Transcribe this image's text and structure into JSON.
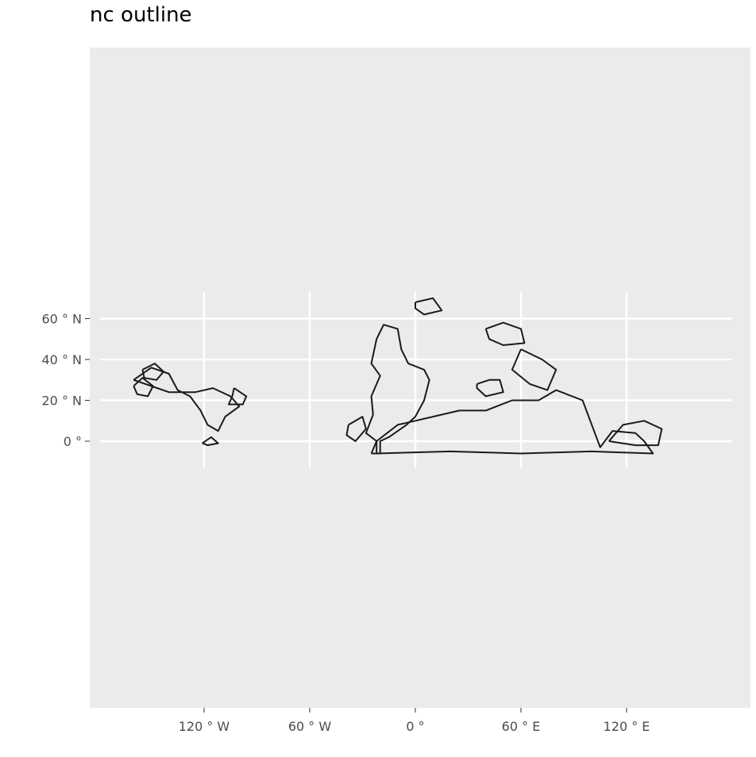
{
  "title": "nc outline",
  "colors": {
    "panel": "#ebebeb",
    "grid": "#ffffff",
    "outline": "#1a1a1a",
    "tick_text": "#4d4d4d"
  },
  "chart_data": {
    "type": "map",
    "title": "nc outline",
    "x_ticks": [
      {
        "lon": -120,
        "label": "120 ° W"
      },
      {
        "lon": -60,
        "label": "60 ° W"
      },
      {
        "lon": 0,
        "label": "0 °"
      },
      {
        "lon": 60,
        "label": "60 ° E"
      },
      {
        "lon": 120,
        "label": "120 ° E"
      }
    ],
    "y_ticks": [
      {
        "lat": 60,
        "label": "60 ° N"
      },
      {
        "lat": 40,
        "label": "40 ° N"
      },
      {
        "lat": 20,
        "label": "20 ° N"
      },
      {
        "lat": 0,
        "label": "0 °"
      }
    ],
    "xlim": [
      -185,
      190
    ],
    "ylim": [
      -13,
      73
    ],
    "grid": true,
    "shapes": [
      {
        "name": "north-america-outline",
        "points": [
          [
            -160,
            30
          ],
          [
            -150,
            36
          ],
          [
            -140,
            33
          ],
          [
            -135,
            25
          ],
          [
            -128,
            22
          ],
          [
            -122,
            15
          ],
          [
            -118,
            8
          ],
          [
            -112,
            5
          ],
          [
            -108,
            12
          ],
          [
            -100,
            17
          ],
          [
            -105,
            22
          ],
          [
            -115,
            26
          ],
          [
            -125,
            24
          ],
          [
            -140,
            24
          ],
          [
            -150,
            27
          ],
          [
            -160,
            30
          ]
        ]
      },
      {
        "name": "west-outline-a",
        "points": [
          [
            -155,
            35
          ],
          [
            -148,
            38
          ],
          [
            -143,
            34
          ],
          [
            -147,
            30
          ],
          [
            -154,
            31
          ],
          [
            -155,
            35
          ]
        ]
      },
      {
        "name": "west-outline-b",
        "points": [
          [
            -160,
            27
          ],
          [
            -155,
            31
          ],
          [
            -149,
            27
          ],
          [
            -152,
            22
          ],
          [
            -158,
            23
          ],
          [
            -160,
            27
          ]
        ]
      },
      {
        "name": "east-outline-c",
        "points": [
          [
            -103,
            26
          ],
          [
            -96,
            22
          ],
          [
            -98,
            18
          ],
          [
            -106,
            18
          ],
          [
            -104,
            22
          ],
          [
            -103,
            26
          ]
        ]
      },
      {
        "name": "central-outline-d",
        "points": [
          [
            -121,
            -1
          ],
          [
            -116,
            2
          ],
          [
            -112,
            -1
          ],
          [
            -118,
            -2
          ],
          [
            -121,
            -1
          ]
        ]
      },
      {
        "name": "europe-africa-outline",
        "points": [
          [
            -25,
            -6
          ],
          [
            -22,
            0
          ],
          [
            -28,
            4
          ],
          [
            -24,
            13
          ],
          [
            -25,
            22
          ],
          [
            -20,
            32
          ],
          [
            -25,
            38
          ],
          [
            -22,
            50
          ],
          [
            -18,
            57
          ],
          [
            -10,
            55
          ],
          [
            -8,
            45
          ],
          [
            -4,
            38
          ],
          [
            5,
            35
          ],
          [
            8,
            30
          ],
          [
            5,
            20
          ],
          [
            0,
            12
          ],
          [
            -5,
            8
          ],
          [
            -15,
            2
          ],
          [
            -20,
            0
          ],
          [
            -20,
            -6
          ],
          [
            -25,
            -6
          ]
        ]
      },
      {
        "name": "southern-band-outline",
        "points": [
          [
            -22,
            -6
          ],
          [
            20,
            -5
          ],
          [
            60,
            -6
          ],
          [
            100,
            -5
          ],
          [
            135,
            -6
          ],
          [
            130,
            0
          ],
          [
            125,
            4
          ],
          [
            112,
            5
          ],
          [
            105,
            -3
          ],
          [
            95,
            20
          ],
          [
            80,
            25
          ],
          [
            70,
            20
          ],
          [
            55,
            20
          ],
          [
            40,
            15
          ],
          [
            25,
            15
          ],
          [
            10,
            12
          ],
          [
            0,
            10
          ],
          [
            -10,
            8
          ],
          [
            -22,
            0
          ],
          [
            -22,
            -6
          ]
        ]
      },
      {
        "name": "mid-outline-e",
        "points": [
          [
            35,
            28
          ],
          [
            42,
            30
          ],
          [
            48,
            30
          ],
          [
            50,
            24
          ],
          [
            40,
            22
          ],
          [
            35,
            26
          ],
          [
            35,
            28
          ]
        ]
      },
      {
        "name": "north-outline-f",
        "points": [
          [
            40,
            55
          ],
          [
            50,
            58
          ],
          [
            60,
            55
          ],
          [
            62,
            48
          ],
          [
            50,
            47
          ],
          [
            42,
            50
          ],
          [
            40,
            55
          ]
        ]
      },
      {
        "name": "north-outline-g",
        "points": [
          [
            0,
            68
          ],
          [
            10,
            70
          ],
          [
            15,
            64
          ],
          [
            5,
            62
          ],
          [
            0,
            65
          ],
          [
            0,
            68
          ]
        ]
      },
      {
        "name": "asia-outline-h",
        "points": [
          [
            60,
            45
          ],
          [
            72,
            40
          ],
          [
            80,
            35
          ],
          [
            75,
            25
          ],
          [
            65,
            28
          ],
          [
            55,
            35
          ],
          [
            60,
            45
          ]
        ]
      },
      {
        "name": "southeast-outline-i",
        "points": [
          [
            110,
            0
          ],
          [
            118,
            8
          ],
          [
            130,
            10
          ],
          [
            140,
            6
          ],
          [
            138,
            -2
          ],
          [
            125,
            -2
          ],
          [
            110,
            0
          ]
        ]
      },
      {
        "name": "southwest-outline-j",
        "points": [
          [
            -38,
            8
          ],
          [
            -30,
            12
          ],
          [
            -28,
            6
          ],
          [
            -34,
            0
          ],
          [
            -39,
            3
          ],
          [
            -38,
            8
          ]
        ]
      }
    ]
  }
}
